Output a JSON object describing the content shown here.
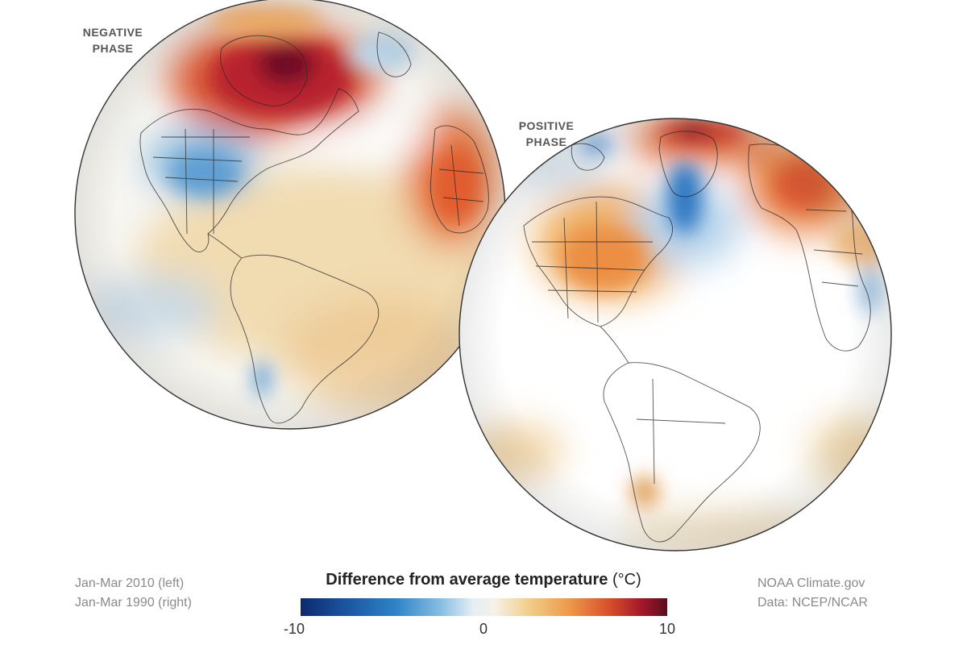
{
  "globes": {
    "left": {
      "label_line1": "NEGATIVE",
      "label_line2": "PHASE"
    },
    "right": {
      "label_line1": "POSITIVE",
      "label_line2": "PHASE"
    }
  },
  "notes": {
    "period_left": "Jan-Mar 2010 (left)",
    "period_right": "Jan-Mar 1990 (right)",
    "credit": "NOAA Climate.gov",
    "data_source": "Data: NCEP/NCAR"
  },
  "legend": {
    "title_bold": "Difference from average temperature",
    "units": "(°C)",
    "tick_min": "-10",
    "tick_mid": "0",
    "tick_max": "10",
    "colors": {
      "cold_extreme": "#0c2a6e",
      "cold": "#2e84c6",
      "neutral": "#f4f1ea",
      "warm": "#ee9b4a",
      "warm_extreme": "#5a0d1e"
    }
  }
}
